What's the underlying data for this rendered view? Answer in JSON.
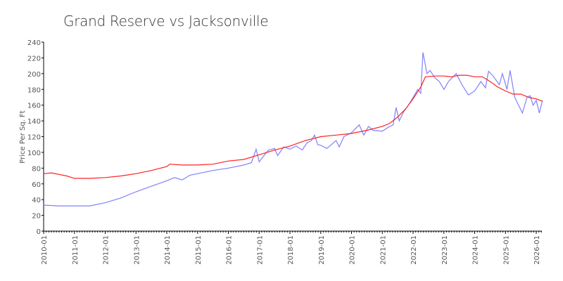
{
  "chart_data": {
    "type": "line",
    "title": "Grand Reserve vs  Jacksonville",
    "xlabel": "",
    "ylabel": "Price Per Sq. Ft",
    "ylim": [
      0,
      240
    ],
    "xlim": [
      2010,
      2026.2
    ],
    "yticks": [
      0,
      20,
      40,
      60,
      80,
      100,
      120,
      140,
      160,
      180,
      200,
      220,
      240
    ],
    "xticks": [
      "2010-01",
      "2011-01",
      "2012-01",
      "2013-01",
      "2014-01",
      "2015-01",
      "2016-01",
      "2017-01",
      "2018-01",
      "2019-01",
      "2020-01",
      "2021-01",
      "2022-01",
      "2023-01",
      "2024-01",
      "2025-01",
      "2026-01"
    ],
    "grid": false,
    "series": [
      {
        "name": "Grand Reserve",
        "color": "#8080ff",
        "points": [
          [
            2010,
            33
          ],
          [
            2010.5,
            32
          ],
          [
            2011,
            32
          ],
          [
            2011.5,
            32
          ],
          [
            2012,
            36
          ],
          [
            2012.5,
            42
          ],
          [
            2013,
            50
          ],
          [
            2013.5,
            57
          ],
          [
            2014,
            64
          ],
          [
            2014.25,
            68
          ],
          [
            2014.5,
            65
          ],
          [
            2014.75,
            71
          ],
          [
            2015,
            73
          ],
          [
            2015.5,
            77
          ],
          [
            2016,
            80
          ],
          [
            2016.5,
            84
          ],
          [
            2016.75,
            87
          ],
          [
            2016.9,
            104
          ],
          [
            2017,
            88
          ],
          [
            2017.1,
            93
          ],
          [
            2017.3,
            103
          ],
          [
            2017.5,
            105
          ],
          [
            2017.6,
            96
          ],
          [
            2017.8,
            107
          ],
          [
            2018,
            104
          ],
          [
            2018.2,
            108
          ],
          [
            2018.4,
            103
          ],
          [
            2018.55,
            112
          ],
          [
            2018.7,
            115
          ],
          [
            2018.8,
            122
          ],
          [
            2018.9,
            110
          ],
          [
            2019,
            109
          ],
          [
            2019.2,
            105
          ],
          [
            2019.5,
            115
          ],
          [
            2019.6,
            107
          ],
          [
            2019.75,
            120
          ],
          [
            2020,
            125
          ],
          [
            2020.25,
            135
          ],
          [
            2020.4,
            122
          ],
          [
            2020.55,
            133
          ],
          [
            2020.7,
            128
          ],
          [
            2021,
            127
          ],
          [
            2021.2,
            132
          ],
          [
            2021.35,
            135
          ],
          [
            2021.45,
            157
          ],
          [
            2021.55,
            140
          ],
          [
            2021.7,
            152
          ],
          [
            2021.85,
            160
          ],
          [
            2022,
            170
          ],
          [
            2022.15,
            180
          ],
          [
            2022.25,
            175
          ],
          [
            2022.32,
            227
          ],
          [
            2022.45,
            200
          ],
          [
            2022.55,
            204
          ],
          [
            2022.7,
            195
          ],
          [
            2022.85,
            190
          ],
          [
            2023,
            180
          ],
          [
            2023.15,
            190
          ],
          [
            2023.4,
            200
          ],
          [
            2023.6,
            185
          ],
          [
            2023.8,
            173
          ],
          [
            2024,
            178
          ],
          [
            2024.2,
            190
          ],
          [
            2024.35,
            182
          ],
          [
            2024.45,
            203
          ],
          [
            2024.6,
            197
          ],
          [
            2024.8,
            186
          ],
          [
            2024.9,
            200
          ],
          [
            2025.05,
            180
          ],
          [
            2025.15,
            204
          ],
          [
            2025.3,
            170
          ],
          [
            2025.55,
            150
          ],
          [
            2025.7,
            170
          ],
          [
            2025.8,
            172
          ],
          [
            2025.9,
            160
          ],
          [
            2026,
            166
          ],
          [
            2026.1,
            150
          ],
          [
            2026.2,
            166
          ]
        ]
      },
      {
        "name": "Jacksonville",
        "color": "#ff2020",
        "points": [
          [
            2010,
            73
          ],
          [
            2010.25,
            74
          ],
          [
            2010.5,
            72
          ],
          [
            2010.75,
            70
          ],
          [
            2011,
            67
          ],
          [
            2011.5,
            67
          ],
          [
            2012,
            68
          ],
          [
            2012.5,
            70
          ],
          [
            2013,
            73
          ],
          [
            2013.5,
            77
          ],
          [
            2014,
            82
          ],
          [
            2014.1,
            85
          ],
          [
            2014.5,
            84
          ],
          [
            2015,
            84
          ],
          [
            2015.5,
            85
          ],
          [
            2016,
            89
          ],
          [
            2016.5,
            91
          ],
          [
            2017,
            97
          ],
          [
            2017.5,
            103
          ],
          [
            2018,
            108
          ],
          [
            2018.5,
            115
          ],
          [
            2019,
            120
          ],
          [
            2019.5,
            122
          ],
          [
            2020,
            124
          ],
          [
            2020.5,
            128
          ],
          [
            2021,
            133
          ],
          [
            2021.25,
            137
          ],
          [
            2021.5,
            145
          ],
          [
            2021.75,
            155
          ],
          [
            2022,
            168
          ],
          [
            2022.25,
            183
          ],
          [
            2022.4,
            196
          ],
          [
            2022.75,
            197
          ],
          [
            2023,
            197
          ],
          [
            2023.25,
            196
          ],
          [
            2023.5,
            198
          ],
          [
            2023.75,
            198
          ],
          [
            2024,
            196
          ],
          [
            2024.25,
            196
          ],
          [
            2024.5,
            190
          ],
          [
            2024.75,
            183
          ],
          [
            2025,
            178
          ],
          [
            2025.25,
            174
          ],
          [
            2025.5,
            174
          ],
          [
            2025.75,
            170
          ],
          [
            2026,
            168
          ],
          [
            2026.2,
            165
          ]
        ]
      }
    ]
  }
}
